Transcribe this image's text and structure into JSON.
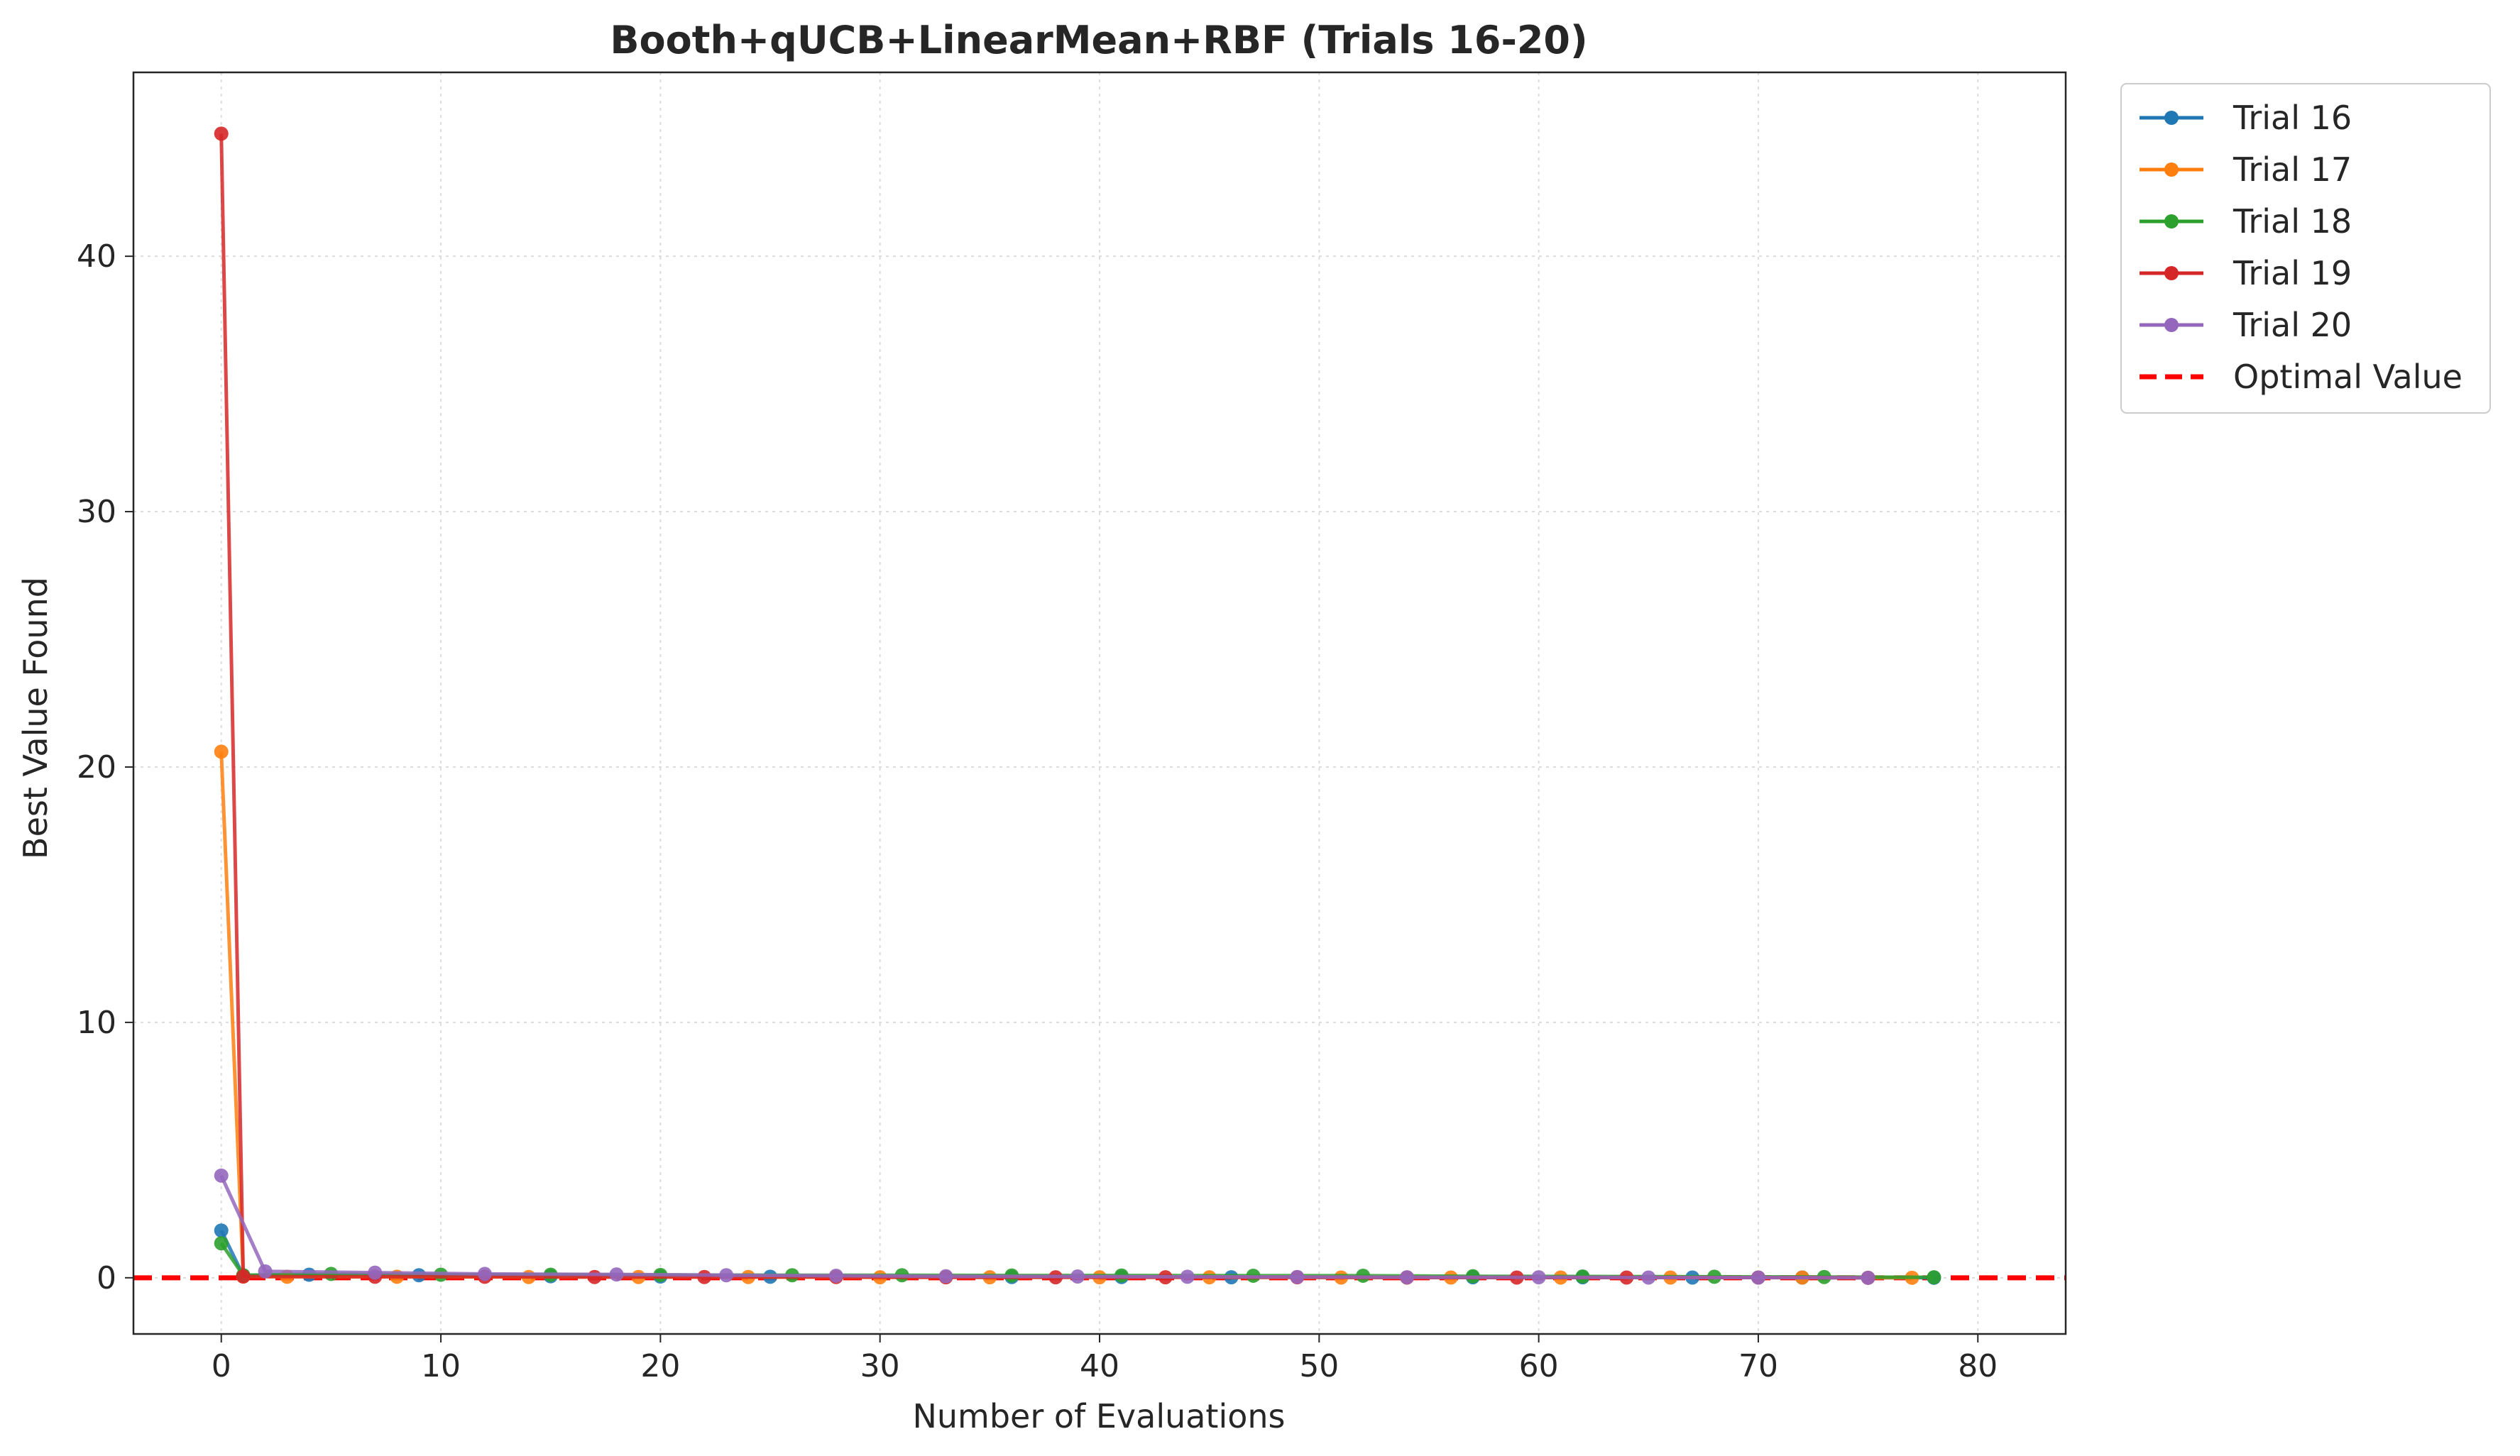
{
  "chart_data": {
    "type": "line",
    "title": "Booth+qUCB+LinearMean+RBF (Trials 16-20)",
    "xlabel": "Number of Evaluations",
    "ylabel": "Best Value Found",
    "xlim": [
      -4,
      84
    ],
    "ylim": [
      -2.2,
      47.2
    ],
    "xticks": [
      0,
      10,
      20,
      30,
      40,
      50,
      60,
      70,
      80
    ],
    "yticks": [
      0,
      10,
      20,
      30,
      40
    ],
    "grid": true,
    "legend_position": "outside-top-right",
    "optimal_value": 0,
    "series": [
      {
        "name": "Trial 16",
        "color": "#1f77b4",
        "x": [
          0,
          1,
          4,
          9,
          15,
          20,
          25,
          36,
          41,
          46,
          57,
          62,
          67,
          72,
          78
        ],
        "y": [
          1.85,
          0.08,
          0.12,
          0.1,
          0.06,
          0.05,
          0.04,
          0.03,
          0.03,
          0.02,
          0.02,
          0.02,
          0.01,
          0.01,
          0.0
        ]
      },
      {
        "name": "Trial 17",
        "color": "#ff7f0e",
        "x": [
          0,
          1,
          3,
          8,
          14,
          19,
          24,
          30,
          35,
          40,
          45,
          51,
          56,
          61,
          66,
          72,
          77
        ],
        "y": [
          20.6,
          0.05,
          0.04,
          0.04,
          0.03,
          0.03,
          0.03,
          0.02,
          0.02,
          0.02,
          0.02,
          0.01,
          0.01,
          0.01,
          0.01,
          0.01,
          0.0
        ]
      },
      {
        "name": "Trial 18",
        "color": "#2ca02c",
        "x": [
          0,
          1,
          5,
          10,
          15,
          20,
          26,
          31,
          36,
          41,
          47,
          52,
          57,
          62,
          68,
          73,
          78
        ],
        "y": [
          1.35,
          0.1,
          0.15,
          0.12,
          0.12,
          0.11,
          0.1,
          0.1,
          0.09,
          0.09,
          0.08,
          0.08,
          0.06,
          0.05,
          0.04,
          0.03,
          0.02
        ]
      },
      {
        "name": "Trial 19",
        "color": "#d62728",
        "x": [
          0,
          1,
          7,
          12,
          17,
          22,
          28,
          33,
          38,
          43,
          49,
          54,
          59,
          64,
          70,
          75
        ],
        "y": [
          44.8,
          0.05,
          0.04,
          0.04,
          0.03,
          0.03,
          0.03,
          0.02,
          0.02,
          0.02,
          0.02,
          0.01,
          0.01,
          0.01,
          0.01,
          0.0
        ]
      },
      {
        "name": "Trial 20",
        "color": "#9467bd",
        "x": [
          0,
          2,
          7,
          12,
          18,
          23,
          28,
          33,
          39,
          44,
          49,
          54,
          60,
          65,
          70,
          75
        ],
        "y": [
          4.0,
          0.25,
          0.2,
          0.15,
          0.13,
          0.1,
          0.08,
          0.06,
          0.05,
          0.04,
          0.03,
          0.02,
          0.02,
          0.01,
          0.01,
          0.0
        ]
      }
    ],
    "reference_line": {
      "name": "Optimal Value",
      "y": 0,
      "color": "#ff0000",
      "style": "dashed"
    }
  }
}
